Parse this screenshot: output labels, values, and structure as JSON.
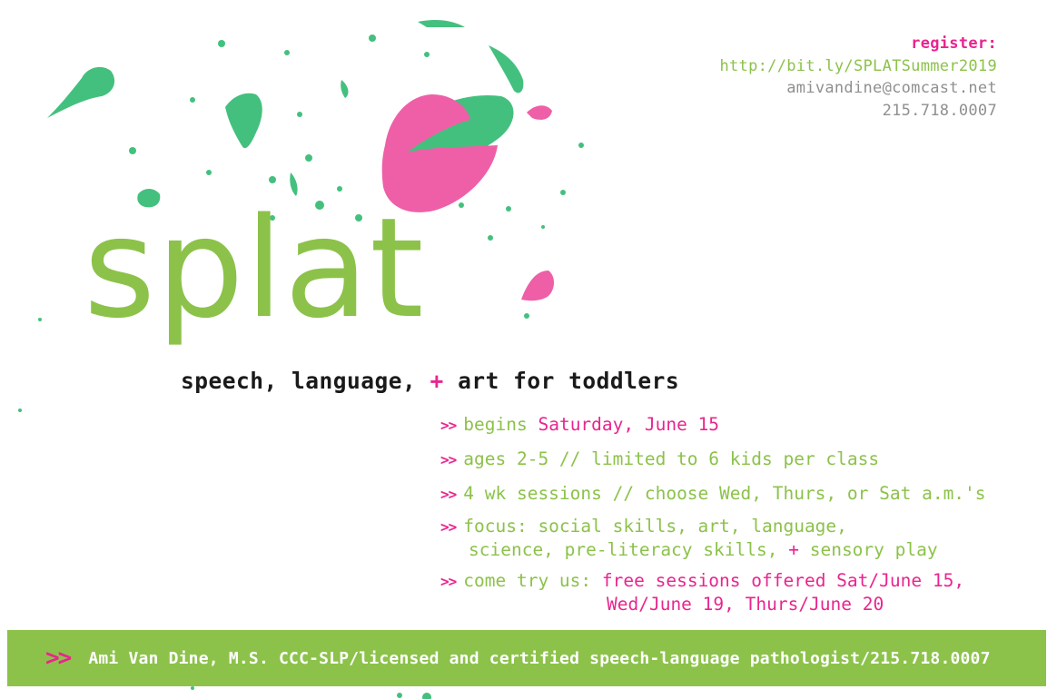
{
  "contact": {
    "register_label": "register:",
    "url": "http://bit.ly/SPLATSummer2019",
    "email": "amivandine@comcast.net",
    "phone": "215.718.0007"
  },
  "logo_text": "splat",
  "tagline": {
    "part1": "speech, language,",
    "plus": "+",
    "part2": "art for toddlers"
  },
  "bullet_marker": ">>",
  "bullets": [
    {
      "prefix": "begins",
      "highlight": "Saturday, June 15"
    },
    {
      "text": "ages 2-5 // limited to 6 kids per class"
    },
    {
      "text": "4 wk sessions // choose Wed, Thurs, or Sat a.m.'s"
    },
    {
      "line1": "focus: social skills, art, language,",
      "line2_a": "science, pre-literacy skills,",
      "line2_plus": "+",
      "line2_b": "sensory play"
    },
    {
      "prefix": "come try us:",
      "highlight1": "free sessions offered Sat/June 15,",
      "highlight2": "Wed/June 19, Thurs/June 20"
    }
  ],
  "footer": {
    "marker": ">>",
    "text": "Ami Van Dine, M.S. CCC-SLP/licensed and certified speech-language pathologist/215.718.0007"
  },
  "colors": {
    "green": "#8cc24a",
    "pink": "#e8258f",
    "paint_green": "#44c07e",
    "grey": "#8f8f8f"
  }
}
